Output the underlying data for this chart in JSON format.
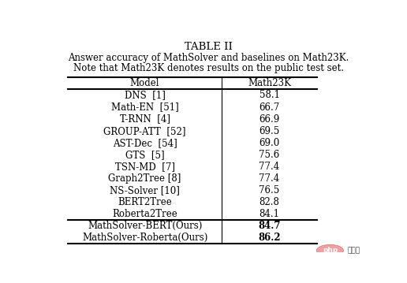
{
  "title": "TABLE II",
  "caption_line1": "Answer accuracy of MathSolver and baselines on Math23K.",
  "caption_line2": "Note that Math23K denotes results on the public test set.",
  "col_headers": [
    "Model",
    "Math23K"
  ],
  "rows": [
    [
      "DNS  [1]",
      "58.1"
    ],
    [
      "Math-EN  [51]",
      "66.7"
    ],
    [
      "T-RNN  [4]",
      "66.9"
    ],
    [
      "GROUP-ATT  [52]",
      "69.5"
    ],
    [
      "AST-Dec  [54]",
      "69.0"
    ],
    [
      "GTS  [5]",
      "75.6"
    ],
    [
      "TSN-MD  [7]",
      "77.4"
    ],
    [
      "Graph2Tree [8]",
      "77.4"
    ],
    [
      "NS-Solver [10]",
      "76.5"
    ],
    [
      "BERT2Tree",
      "82.8"
    ],
    [
      "Roberta2Tree",
      "84.1"
    ]
  ],
  "ours_rows": [
    [
      "MathSolver-BERT(Ours)",
      "84.7"
    ],
    [
      "MathSolver-Roberta(Ours)",
      "86.2"
    ]
  ],
  "bg_color": "#ffffff",
  "text_color": "#000000",
  "title_fontsize": 9.5,
  "caption_fontsize": 8.5,
  "table_fontsize": 8.5,
  "header_fontsize": 8.5,
  "php_color": "#f08080",
  "php_text_color": "#cc3300",
  "zhongwen_color": "#333333"
}
